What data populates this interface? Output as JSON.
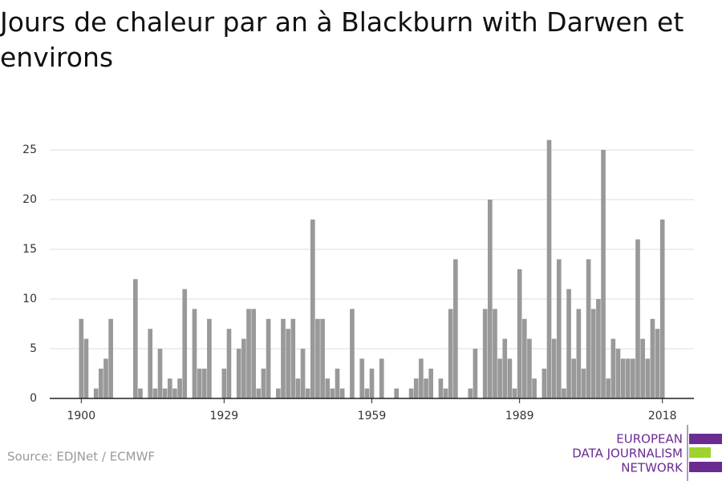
{
  "chart_data": {
    "type": "bar",
    "title": "Jours de chaleur par an à Blackburn with Darwen et environs",
    "source": "Source: EDJNet / ECMWF",
    "logo": [
      "EUROPEAN",
      "DATA JOURNALISM",
      "NETWORK"
    ],
    "color": "#999999",
    "x": [
      1900,
      1901,
      1902,
      1903,
      1904,
      1905,
      1906,
      1907,
      1908,
      1909,
      1910,
      1911,
      1912,
      1913,
      1914,
      1915,
      1916,
      1917,
      1918,
      1919,
      1920,
      1921,
      1922,
      1923,
      1924,
      1925,
      1926,
      1927,
      1928,
      1929,
      1930,
      1931,
      1932,
      1933,
      1934,
      1935,
      1936,
      1937,
      1938,
      1939,
      1940,
      1941,
      1942,
      1943,
      1944,
      1945,
      1946,
      1947,
      1948,
      1949,
      1950,
      1951,
      1952,
      1953,
      1954,
      1955,
      1956,
      1957,
      1958,
      1959,
      1960,
      1961,
      1962,
      1963,
      1964,
      1965,
      1966,
      1967,
      1968,
      1969,
      1970,
      1971,
      1972,
      1973,
      1974,
      1975,
      1976,
      1977,
      1978,
      1979,
      1980,
      1981,
      1982,
      1983,
      1984,
      1985,
      1986,
      1987,
      1988,
      1989,
      1990,
      1991,
      1992,
      1993,
      1994,
      1995,
      1996,
      1997,
      1998,
      1999,
      2000,
      2001,
      2002,
      2003,
      2004,
      2005,
      2006,
      2007,
      2008,
      2009,
      2010,
      2011,
      2012,
      2013,
      2014,
      2015,
      2016,
      2017,
      2018
    ],
    "values": [
      8,
      6,
      0,
      1,
      3,
      4,
      8,
      0,
      0,
      0,
      0,
      12,
      1,
      0,
      7,
      1,
      5,
      1,
      2,
      1,
      2,
      11,
      0,
      9,
      3,
      3,
      8,
      0,
      0,
      3,
      7,
      0,
      5,
      6,
      9,
      9,
      1,
      3,
      8,
      0,
      1,
      8,
      7,
      8,
      2,
      5,
      1,
      18,
      8,
      8,
      2,
      1,
      3,
      1,
      0,
      9,
      0,
      4,
      1,
      3,
      0,
      4,
      0,
      0,
      1,
      0,
      0,
      1,
      2,
      4,
      2,
      3,
      0,
      2,
      1,
      9,
      14,
      0,
      0,
      1,
      5,
      0,
      9,
      20,
      9,
      4,
      6,
      4,
      1,
      13,
      8,
      6,
      2,
      0,
      3,
      26,
      6,
      14,
      1,
      11,
      4,
      9,
      3,
      14,
      9,
      10,
      25,
      2,
      6,
      5,
      4,
      4,
      4,
      16,
      6,
      4,
      8,
      7,
      18
    ],
    "xlim": [
      1893.6,
      2024.4
    ],
    "xticks": [
      1900,
      1929,
      1959,
      1989,
      2018
    ],
    "ylim": [
      0,
      25
    ],
    "yticks": [
      0,
      5,
      10,
      15,
      20,
      25
    ],
    "grid": true
  }
}
